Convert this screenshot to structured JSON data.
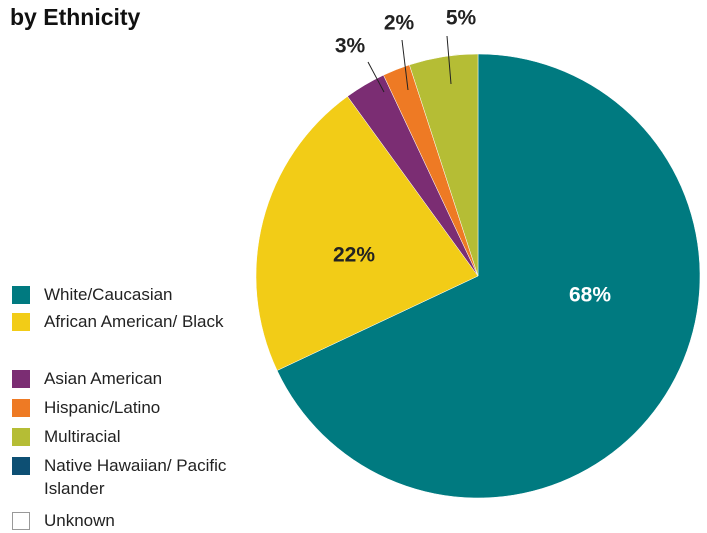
{
  "chart_data": {
    "type": "pie",
    "title": "by Ethnicity",
    "categories": [
      "White/Caucasian",
      "African American/ Black",
      "Asian American",
      "Hispanic/Latino",
      "Multiracial",
      "Native Hawaiian/ Pacific Islander",
      "Unknown"
    ],
    "values": [
      68,
      22,
      3,
      2,
      5,
      null,
      null
    ],
    "value_labels": [
      "68%",
      "22%",
      "3%",
      "2%",
      "5%",
      null,
      null
    ],
    "colors": [
      "#007a80",
      "#f2cc17",
      "#7b2d73",
      "#ee7a24",
      "#b5bd35",
      "#0d4f73",
      "#ffffff"
    ],
    "legend": "left"
  }
}
